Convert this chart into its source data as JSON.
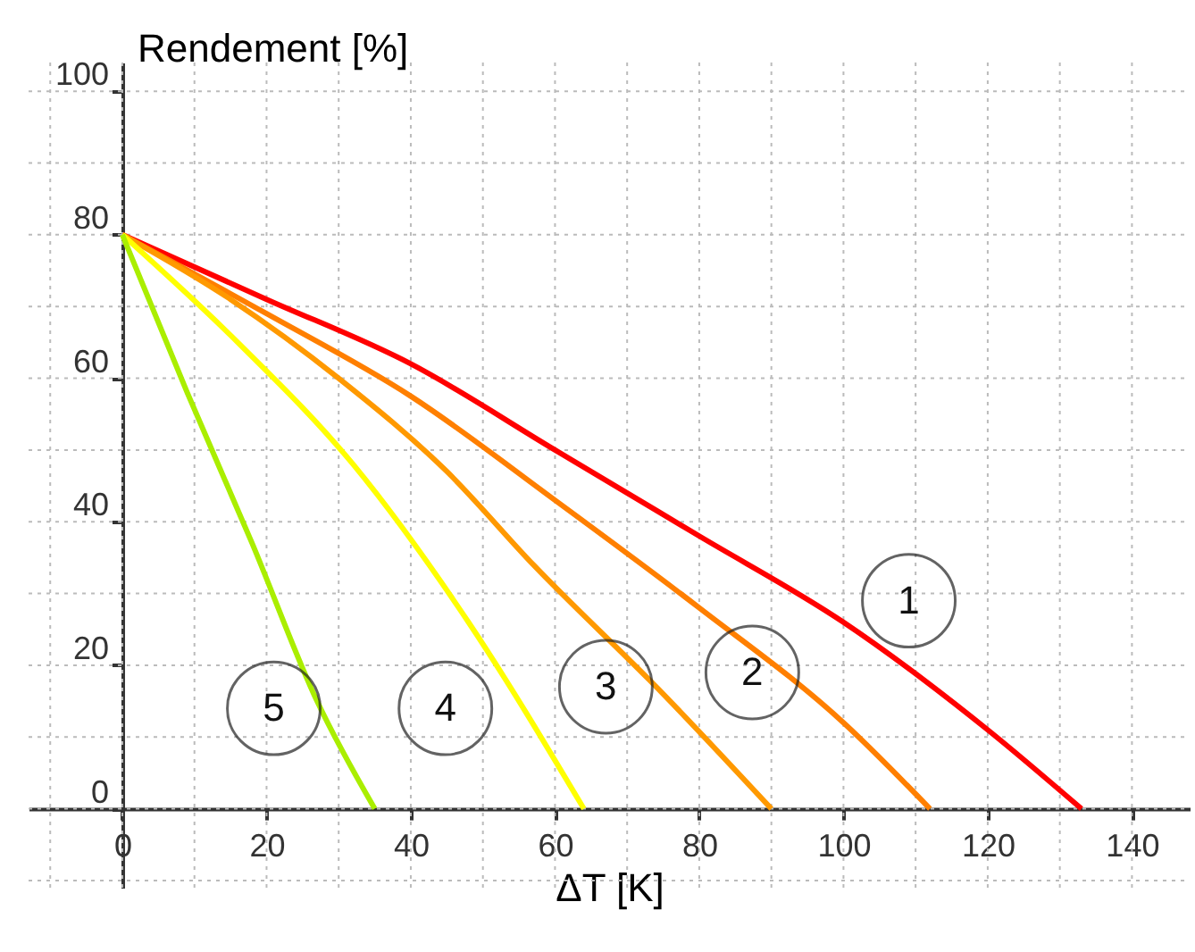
{
  "chart_data": {
    "type": "line",
    "xlabel": "ΔT [K]",
    "ylabel": "Rendement [%]",
    "xlim": [
      -13,
      148
    ],
    "ylim": [
      -11,
      104
    ],
    "xticks": [
      0,
      20,
      40,
      60,
      80,
      100,
      120,
      140
    ],
    "yticks": [
      0,
      20,
      40,
      60,
      80,
      100
    ],
    "grid": true,
    "legend": false,
    "marker": "none",
    "line_style": "solid",
    "series": [
      {
        "name": "1",
        "color": "#ff0000",
        "x": [
          0,
          20,
          40,
          60,
          80,
          100,
          120,
          133
        ],
        "values": [
          80,
          71,
          62,
          50,
          38,
          26,
          11,
          0
        ]
      },
      {
        "name": "2",
        "color": "#ff7f00",
        "x": [
          0,
          20,
          40,
          60,
          80,
          100,
          112
        ],
        "values": [
          80,
          69,
          57.5,
          43,
          28,
          12,
          0
        ]
      },
      {
        "name": "3",
        "color": "#ff9900",
        "x": [
          0,
          15,
          30,
          45,
          57,
          75,
          90
        ],
        "values": [
          80,
          71,
          60,
          47,
          34,
          16,
          0
        ]
      },
      {
        "name": "4",
        "color": "#ffff00",
        "x": [
          0,
          16,
          32,
          48,
          64
        ],
        "values": [
          80,
          65,
          48,
          26,
          0
        ]
      },
      {
        "name": "5",
        "color": "#aaee00",
        "x": [
          0,
          9,
          18,
          27,
          35
        ],
        "values": [
          80,
          58,
          37,
          15,
          0
        ]
      }
    ]
  }
}
